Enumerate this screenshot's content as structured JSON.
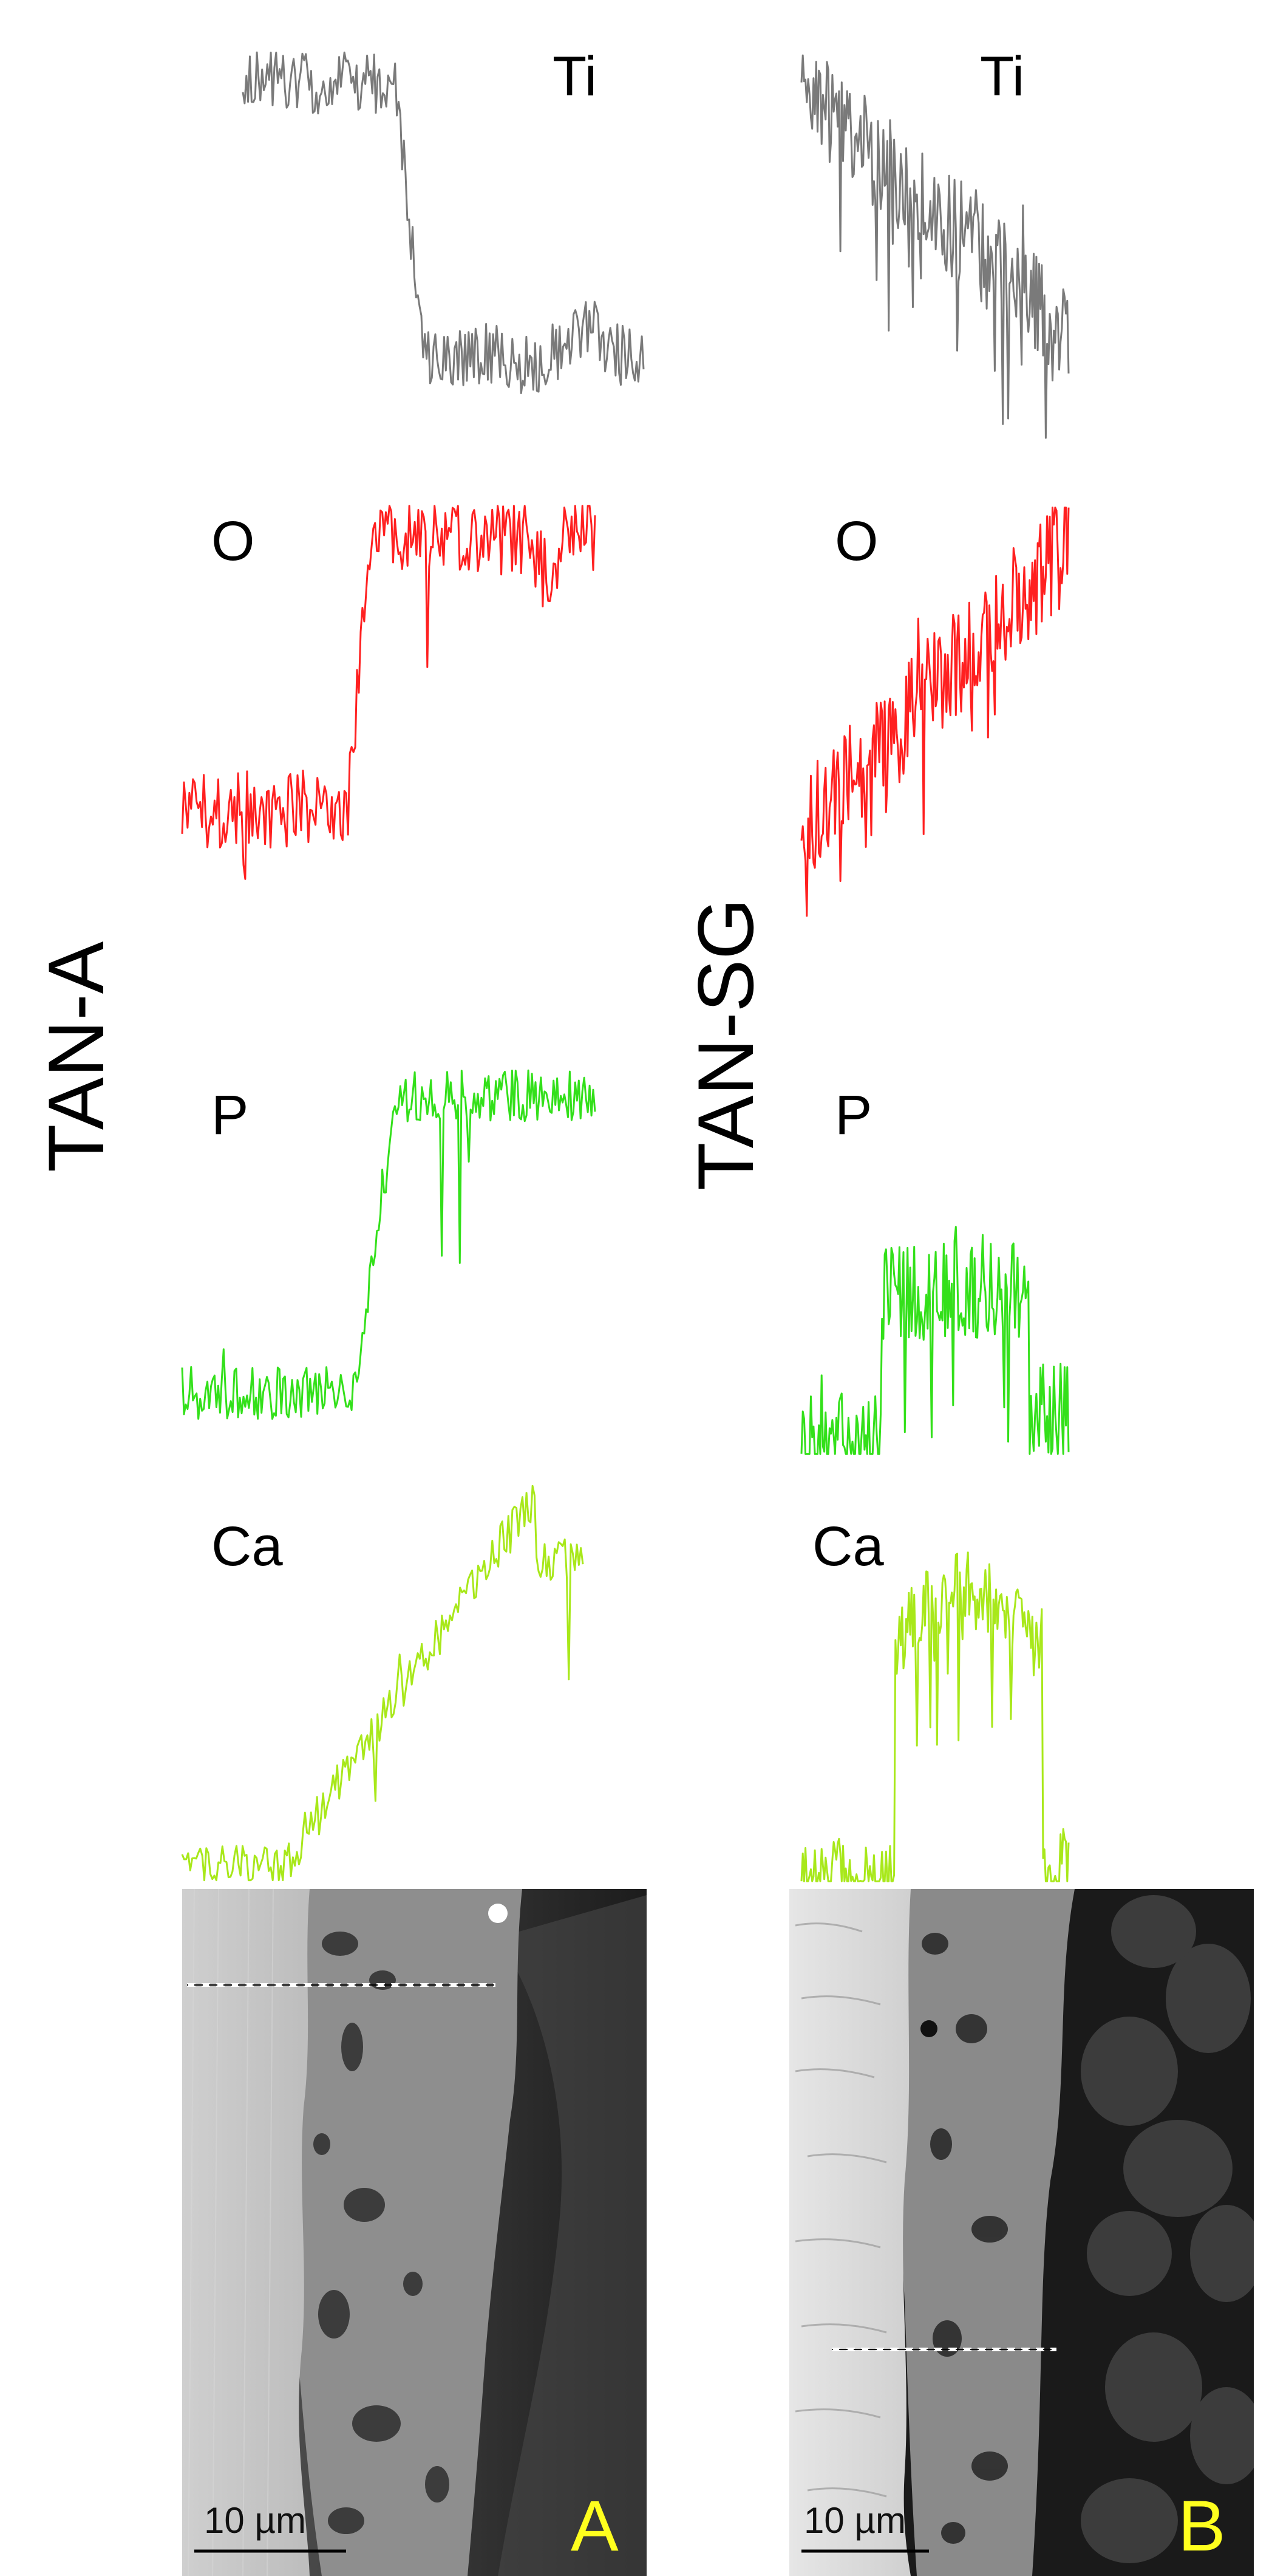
{
  "figure": {
    "column_a": {
      "row_label": "TAN-A",
      "panel_letter": "A",
      "scale_bar": "10 µm"
    },
    "column_b": {
      "row_label": "TAN-SG",
      "panel_letter": "B",
      "scale_bar": "10 µm"
    }
  },
  "elements": [
    {
      "symbol": "Ti",
      "color": "#7a7a7a"
    },
    {
      "symbol": "O",
      "color": "#ff2020"
    },
    {
      "symbol": "P",
      "color": "#33e01a"
    },
    {
      "symbol": "Ca",
      "color": "#a8e81a"
    }
  ],
  "colors": {
    "letter": "#ffff1e",
    "background": "#ffffff"
  }
}
